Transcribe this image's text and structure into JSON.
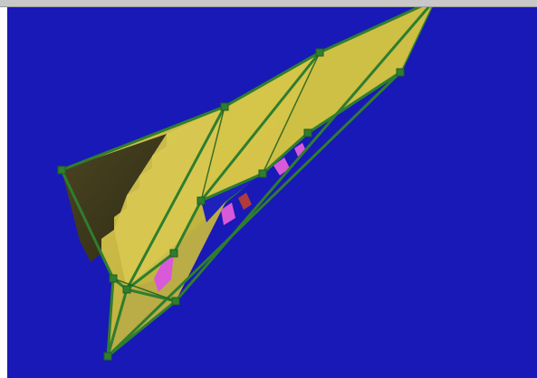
{
  "app": {
    "view": "mesh-viewport",
    "selected_object": "tetrahedral-wedge"
  },
  "colors": {
    "background": "#1919b7",
    "top_bar": "#c8c8c8",
    "wire": "#2f7d2f",
    "wire_dark": "#1f5f1f",
    "face_light": "#d6c64a",
    "face_mid": "#c2b43e",
    "face_shadow": "#3f3a1f",
    "artifact_pink": "#d85ad8",
    "artifact_red": "#b13a3a"
  },
  "icons": {
    "vertex_handle": "square-vertex-icon"
  }
}
